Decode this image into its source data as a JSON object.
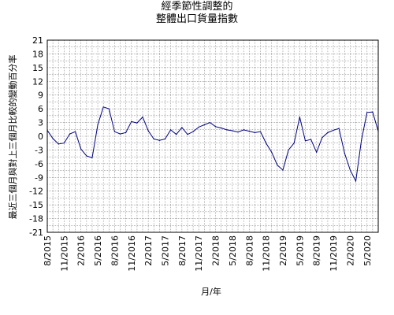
{
  "chart_data": {
    "type": "line",
    "title_lines": [
      "經季節性調整的",
      "整體出口貨量指數"
    ],
    "xlabel": "月/年",
    "ylabel": "最近三個月與對上三個月比較的變動百分率",
    "ylim": [
      -21,
      21
    ],
    "yticks": [
      21,
      18,
      15,
      12,
      9,
      6,
      3,
      0,
      -3,
      -6,
      -9,
      -12,
      -15,
      -18,
      -21
    ],
    "grid": true,
    "xtick_labels": [
      "8/2015",
      "11/2015",
      "2/2016",
      "5/2016",
      "8/2016",
      "11/2016",
      "2/2017",
      "5/2017",
      "8/2017",
      "11/2017",
      "2/2018",
      "5/2018",
      "8/2018",
      "11/2018",
      "2/2019",
      "5/2019",
      "8/2019",
      "11/2019",
      "2/2020",
      "5/2020"
    ],
    "x_start": "8/2015",
    "x_end": "7/2020",
    "series": [
      {
        "color": "#000080",
        "values": [
          1.3,
          -0.5,
          -1.7,
          -1.5,
          0.5,
          1.0,
          -2.8,
          -4.3,
          -4.7,
          2.5,
          6.4,
          6.0,
          1.0,
          0.5,
          0.8,
          3.2,
          2.9,
          4.2,
          1.2,
          -0.6,
          -0.9,
          -0.6,
          1.4,
          0.4,
          1.9,
          0.4,
          1.0,
          2.0,
          2.5,
          3.0,
          2.1,
          1.8,
          1.4,
          1.2,
          0.9,
          1.4,
          1.1,
          0.8,
          1.0,
          -1.5,
          -3.5,
          -6.3,
          -7.4,
          -3.0,
          -1.5,
          4.2,
          -1.0,
          -0.7,
          -3.5,
          -0.3,
          0.8,
          1.3,
          1.7,
          -3.7,
          -7.4,
          -9.8,
          -0.9,
          5.2,
          5.3,
          1.1
        ]
      }
    ]
  }
}
